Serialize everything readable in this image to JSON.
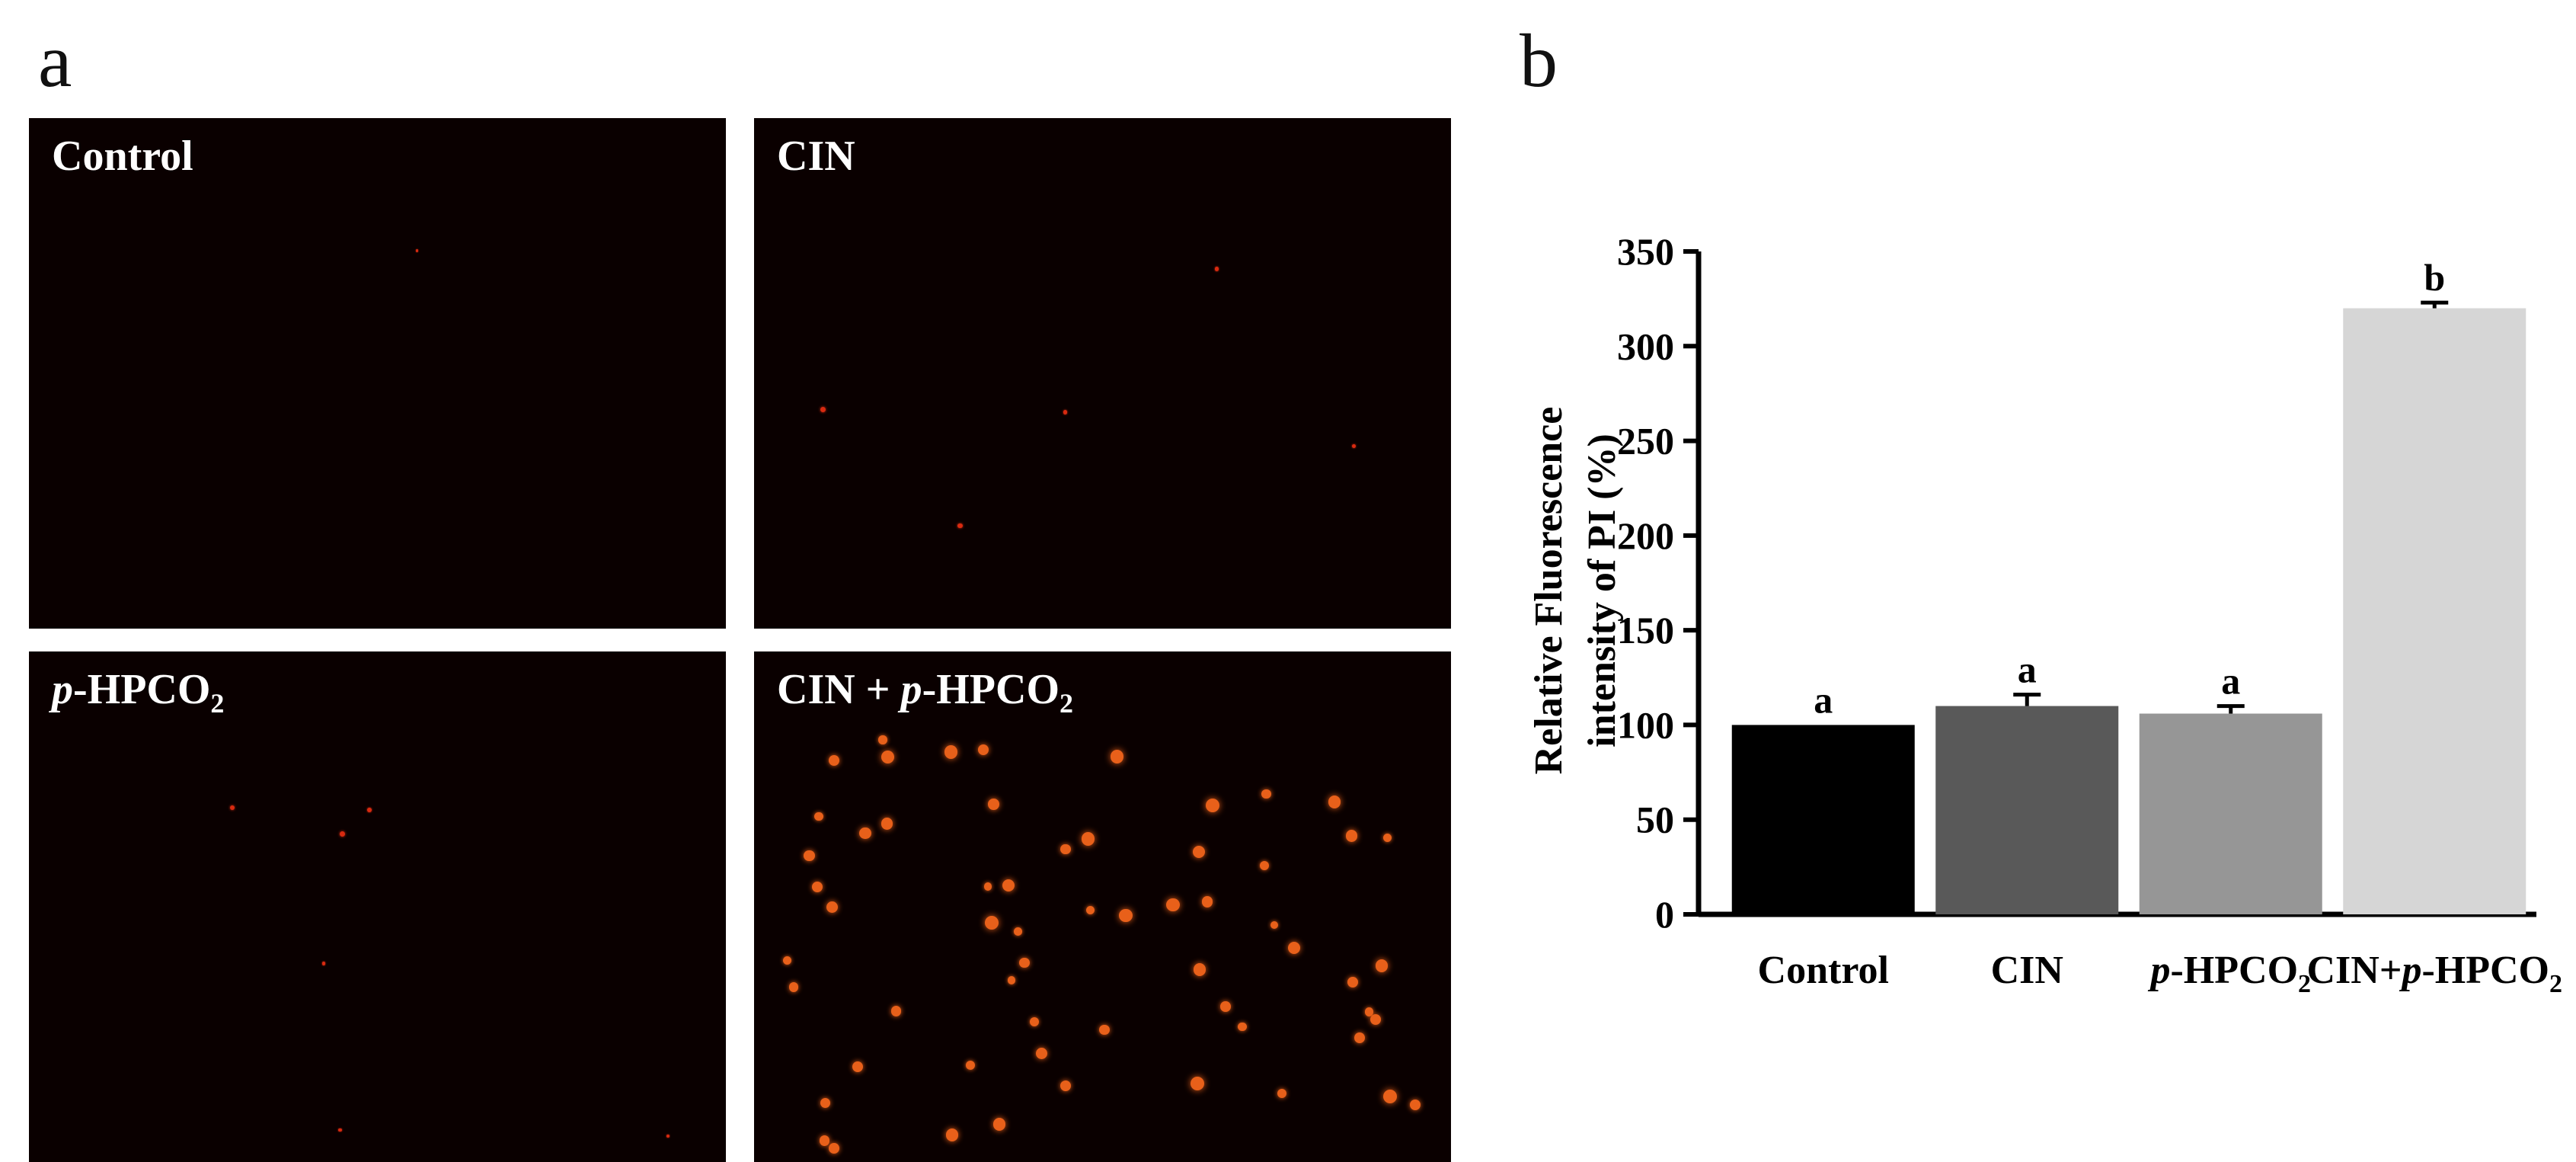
{
  "panel_a": {
    "letter": "a",
    "images": [
      {
        "id": "control",
        "label_main": "Control",
        "label_italic": "",
        "label_sub": ""
      },
      {
        "id": "cin",
        "label_main": "CIN",
        "label_italic": "",
        "label_sub": ""
      },
      {
        "id": "phpco2",
        "label_italic": "p",
        "label_main": "-HPCO",
        "label_sub": "2"
      },
      {
        "id": "cin_phpco2",
        "label_prefix": "CIN + ",
        "label_italic": "p",
        "label_main": "-HPCO",
        "label_sub": "2"
      }
    ]
  },
  "panel_b": {
    "letter": "b"
  },
  "colors": {
    "micrograph_bg": "#0a0000",
    "cell_red": "#d82a10",
    "cell_orange": "#e8601a"
  },
  "chart_data": {
    "type": "bar",
    "categories": [
      {
        "italic": "",
        "text": "Control",
        "sub": ""
      },
      {
        "italic": "",
        "text": "CIN",
        "sub": ""
      },
      {
        "italic": "p",
        "text": "-HPCO",
        "sub": "2"
      },
      {
        "prefix": "CIN+",
        "italic": "p",
        "text": "-HPCO",
        "sub": "2"
      }
    ],
    "values": [
      100,
      110,
      106,
      320
    ],
    "errors": [
      0,
      6,
      4,
      3
    ],
    "significance": [
      "a",
      "a",
      "a",
      "b"
    ],
    "bar_colors": [
      "#000000",
      "#595959",
      "#969696",
      "#d6d6d6"
    ],
    "ylabel_line1": "Relative Fluorescence",
    "ylabel_line2": "intensity of PI (%)",
    "xlabel": "",
    "title": "",
    "ylim": [
      0,
      350
    ],
    "yticks": [
      0,
      50,
      100,
      150,
      200,
      250,
      300,
      350
    ],
    "grid": false
  }
}
